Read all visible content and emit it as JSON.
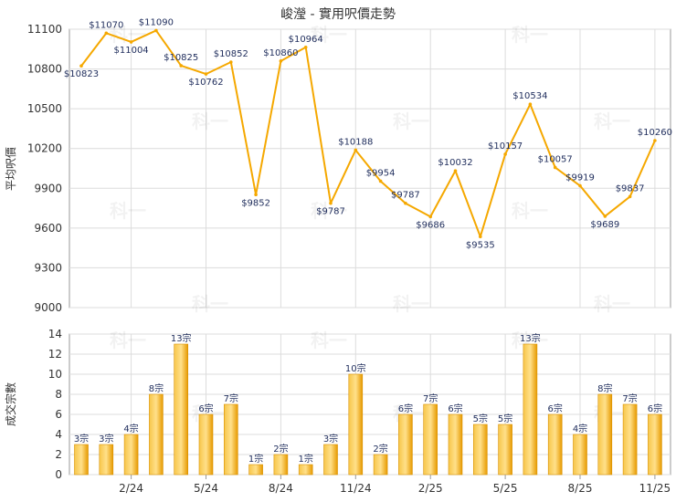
{
  "chart_data": [
    {
      "type": "line",
      "title": "峻瀅 - 實用呎價走勢",
      "ylabel": "平均呎價",
      "ylim": [
        9000,
        11100
      ],
      "yticks": [
        9000,
        9300,
        9600,
        9900,
        10200,
        10500,
        10800,
        11100
      ],
      "grid": true,
      "color": "#f5a800",
      "point_labels": [
        "$10823",
        "$11070",
        "$11004",
        "$11090",
        "$10825",
        "$10762",
        "$10852",
        "$9852",
        "$10860",
        "$10964",
        "$9787",
        "$10188",
        "$9954",
        "$9787",
        "$9686",
        "$10032",
        "$9535",
        "$10157",
        "$10534",
        "$10057",
        "$9919",
        "$9689",
        "$9837",
        "$10260"
      ],
      "values": [
        10823,
        11070,
        11004,
        11090,
        10825,
        10762,
        10852,
        9852,
        10860,
        10964,
        9787,
        10188,
        9954,
        9787,
        9686,
        10032,
        9535,
        10157,
        10534,
        10057,
        9919,
        9689,
        9837,
        10260
      ]
    },
    {
      "type": "bar",
      "ylabel": "成交宗數",
      "ylim": [
        0,
        14
      ],
      "yticks": [
        0,
        2,
        4,
        6,
        8,
        10,
        12,
        14
      ],
      "grid": true,
      "color": "#f2a900",
      "x_tick_labels": [
        "2/24",
        "5/24",
        "8/24",
        "11/24",
        "2/25",
        "5/25",
        "8/25",
        "11/25"
      ],
      "value_labels": [
        "3宗",
        "3宗",
        "4宗",
        "8宗",
        "13宗",
        "6宗",
        "7宗",
        "1宗",
        "2宗",
        "1宗",
        "3宗",
        "10宗",
        "2宗",
        "6宗",
        "7宗",
        "6宗",
        "5宗",
        "5宗",
        "13宗",
        "6宗",
        "4宗",
        "8宗",
        "7宗",
        "6宗"
      ],
      "values": [
        3,
        3,
        4,
        8,
        13,
        6,
        7,
        1,
        2,
        1,
        3,
        10,
        2,
        6,
        7,
        6,
        5,
        5,
        13,
        6,
        4,
        8,
        7,
        6
      ]
    }
  ],
  "watermark": "科一"
}
